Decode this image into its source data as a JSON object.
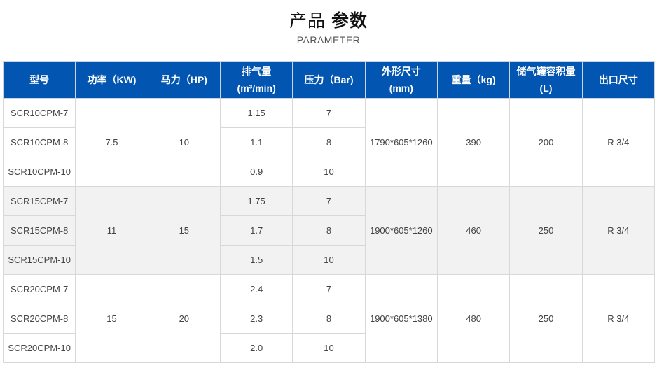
{
  "header": {
    "title_light": "产品",
    "title_bold": "参数",
    "subtitle": "PARAMETER"
  },
  "colors": {
    "header_bg": "#0256b1",
    "alt_row_bg": "#f2f2f2"
  },
  "table": {
    "columns": [
      "型号",
      "功率（KW)",
      "马力（HP)",
      "排气量\n(m³/min)",
      "压力（Bar)",
      "外形尺寸\n(mm)",
      "重量（kg)",
      "储气罐容积量\n(L)",
      "出口尺寸"
    ],
    "groups": [
      {
        "power": "7.5",
        "hp": "10",
        "dims": "1790*605*1260",
        "weight": "390",
        "tank": "200",
        "outlet": "R 3/4",
        "rows": [
          {
            "model": "SCR10CPM-7",
            "flow": "1.15",
            "pressure": "7"
          },
          {
            "model": "SCR10CPM-8",
            "flow": "1.1",
            "pressure": "8"
          },
          {
            "model": "SCR10CPM-10",
            "flow": "0.9",
            "pressure": "10"
          }
        ]
      },
      {
        "power": "11",
        "hp": "15",
        "dims": "1900*605*1260",
        "weight": "460",
        "tank": "250",
        "outlet": "R 3/4",
        "rows": [
          {
            "model": "SCR15CPM-7",
            "flow": "1.75",
            "pressure": "7"
          },
          {
            "model": "SCR15CPM-8",
            "flow": "1.7",
            "pressure": "8"
          },
          {
            "model": "SCR15CPM-10",
            "flow": "1.5",
            "pressure": "10"
          }
        ]
      },
      {
        "power": "15",
        "hp": "20",
        "dims": "1900*605*1380",
        "weight": "480",
        "tank": "250",
        "outlet": "R 3/4",
        "rows": [
          {
            "model": "SCR20CPM-7",
            "flow": "2.4",
            "pressure": "7"
          },
          {
            "model": "SCR20CPM-8",
            "flow": "2.3",
            "pressure": "8"
          },
          {
            "model": "SCR20CPM-10",
            "flow": "2.0",
            "pressure": "10"
          }
        ]
      }
    ]
  }
}
